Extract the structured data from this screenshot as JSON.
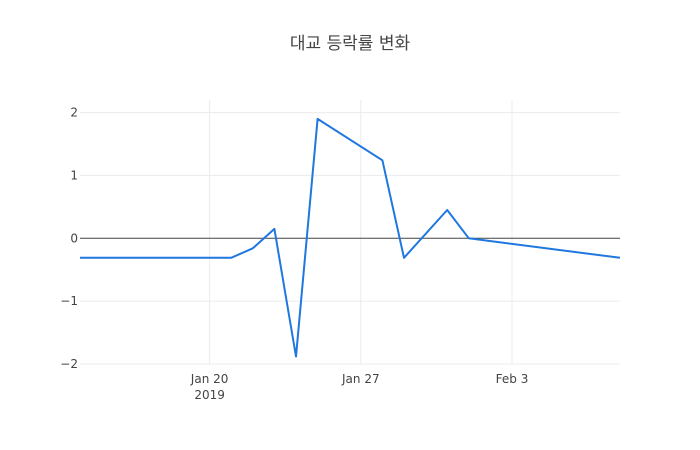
{
  "chart_data": {
    "type": "line",
    "title": "대교 등락률 변화",
    "xlabel": "",
    "ylabel": "",
    "x_ticks": [
      {
        "date": "2019-01-20",
        "label": "Jan 20",
        "sublabel": "2019"
      },
      {
        "date": "2019-01-27",
        "label": "Jan 27",
        "sublabel": ""
      },
      {
        "date": "2019-02-03",
        "label": "Feb 3",
        "sublabel": ""
      }
    ],
    "y_ticks": [
      2,
      1,
      0,
      -1,
      -2
    ],
    "y_tick_labels": [
      "2",
      "1",
      "0",
      "−1",
      "−2"
    ],
    "xlim": [
      "2019-01-14",
      "2019-02-08"
    ],
    "ylim": [
      -2,
      2.2
    ],
    "grid": true,
    "zero_line": true,
    "series": [
      {
        "color": "#1f77e0",
        "x": [
          "2019-01-14",
          "2019-01-21",
          "2019-01-22",
          "2019-01-23",
          "2019-01-24",
          "2019-01-25",
          "2019-01-28",
          "2019-01-29",
          "2019-01-31",
          "2019-02-01",
          "2019-02-08"
        ],
        "values": [
          -0.31,
          -0.31,
          -0.16,
          0.15,
          -1.88,
          1.9,
          1.24,
          -0.31,
          0.45,
          0.0,
          -0.31
        ]
      }
    ]
  }
}
